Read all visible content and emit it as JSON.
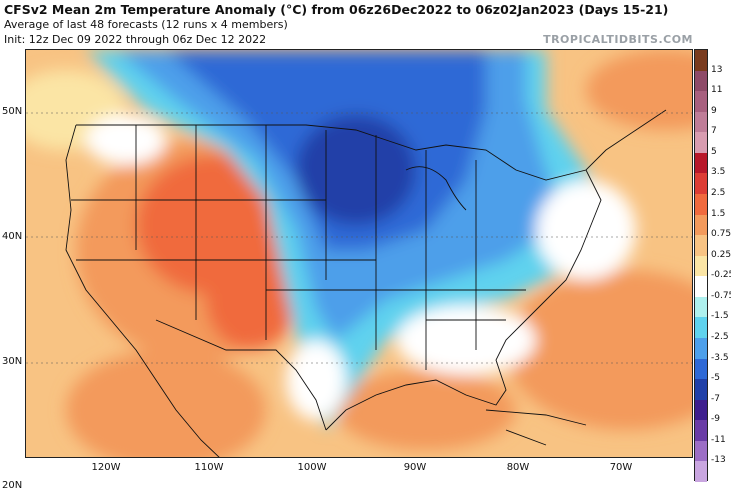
{
  "header": {
    "title": "CFSv2 Mean 2m Temperature Anomaly (°C) from 06z26Dec2022 to 06z02Jan2023 (Days 15-21)",
    "subtitle": "Average of last 48 forecasts (12 runs x 4 members)",
    "init": "Init: 12z Dec 09 2022 through 06z Dec 12 2022",
    "brand": "TROPICALTIDBITS.COM"
  },
  "axes": {
    "lat_labels": [
      "50N",
      "40N",
      "30N",
      "20N"
    ],
    "lon_labels": [
      "120W",
      "110W",
      "100W",
      "90W",
      "80W",
      "70W"
    ]
  },
  "colorbar": {
    "labels": [
      "13",
      "11",
      "9",
      "7",
      "5",
      "3.5",
      "2.5",
      "1.5",
      "0.75",
      "0.25",
      "-0.25",
      "-0.75",
      "-1.5",
      "-2.5",
      "-3.5",
      "-5",
      "-7",
      "-9",
      "-11",
      "-13"
    ],
    "colors": [
      "#7a3b1e",
      "#8e4a68",
      "#a8607f",
      "#bf7d98",
      "#d89cb0",
      "#b8182a",
      "#dd3d35",
      "#f06a3e",
      "#f39a5c",
      "#f8c383",
      "#fbe5a5",
      "#ffffff",
      "#aef0ee",
      "#5fd2ee",
      "#4d9fea",
      "#2f69d6",
      "#2140a8",
      "#3e1f8e",
      "#6a3ca6",
      "#9c6ec6",
      "#c9a6e0"
    ]
  },
  "map": {
    "ocean_color": "#f6b888",
    "region_notes": []
  }
}
